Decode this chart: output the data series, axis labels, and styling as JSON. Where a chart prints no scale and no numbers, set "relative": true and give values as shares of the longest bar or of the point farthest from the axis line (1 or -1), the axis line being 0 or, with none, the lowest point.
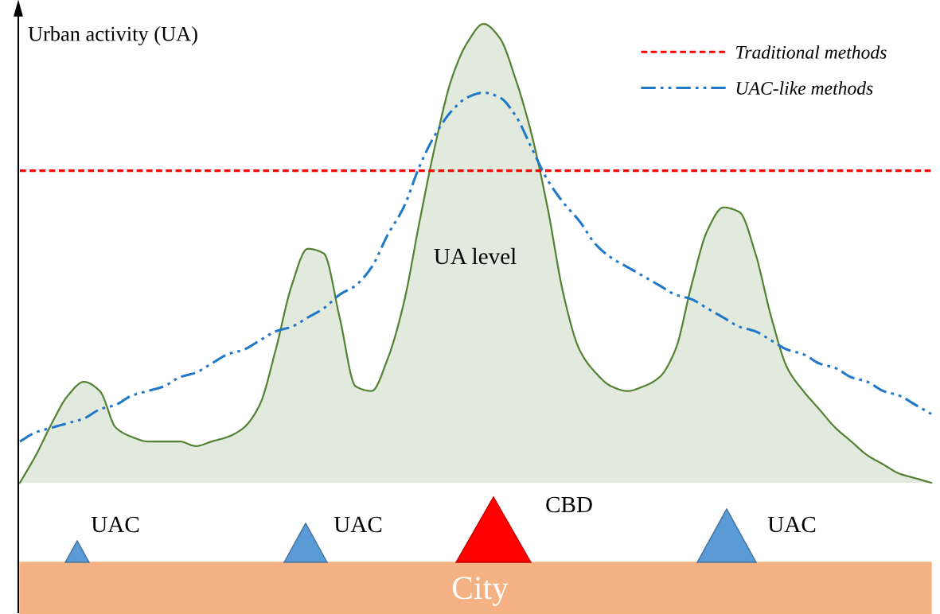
{
  "chart_data": {
    "type": "line",
    "relative": true,
    "ylabel": "Urban activity (UA)",
    "legend": "top right",
    "categories": [
      null,
      null,
      null,
      null,
      null,
      null,
      null,
      null,
      null,
      null,
      null,
      null,
      null,
      null,
      null,
      null,
      null,
      null,
      null,
      null,
      null,
      null,
      null,
      null,
      null,
      null,
      null,
      null,
      null,
      null,
      null,
      null,
      null,
      null,
      null,
      null,
      null,
      null,
      null,
      null,
      null,
      null,
      null,
      null,
      null,
      null,
      null,
      null,
      null,
      null,
      null,
      null,
      null,
      null,
      null,
      null,
      null,
      null
    ],
    "series": [
      {
        "type": "area",
        "color": "#548235",
        "values": [
          0,
          0.06,
          0.13,
          0.19,
          0.22,
          0.2,
          0.12,
          0.1,
          0.09,
          0.09,
          0.09,
          0.08,
          0.09,
          0.1,
          0.12,
          0.17,
          0.29,
          0.43,
          0.51,
          0.5,
          0.36,
          0.21,
          0.2,
          0.27,
          0.39,
          0.57,
          0.74,
          0.88,
          0.96,
          1.0,
          0.97,
          0.88,
          0.76,
          0.6,
          0.41,
          0.29,
          0.24,
          0.21,
          0.2,
          0.21,
          0.23,
          0.29,
          0.43,
          0.55,
          0.6,
          0.59,
          0.5,
          0.36,
          0.25,
          0.2,
          0.16,
          0.12,
          0.09,
          0.06,
          0.04,
          0.02,
          0.01,
          0
        ]
      },
      {
        "name": "Traditional methods",
        "color": "#ff0000",
        "line_style": "dashed",
        "values": [
          0.68,
          0.68,
          0.68,
          0.68,
          0.68,
          0.68,
          0.68,
          0.68,
          0.68,
          0.68,
          0.68,
          0.68,
          0.68,
          0.68,
          0.68,
          0.68,
          0.68,
          0.68,
          0.68,
          0.68,
          0.68,
          0.68,
          0.68,
          0.68,
          0.68,
          0.68,
          0.68,
          0.68,
          0.68,
          0.68,
          0.68,
          0.68,
          0.68,
          0.68,
          0.68,
          0.68,
          0.68,
          0.68,
          0.68,
          0.68,
          0.68,
          0.68,
          0.68,
          0.68,
          0.68,
          0.68,
          0.68,
          0.68,
          0.68,
          0.68,
          0.68,
          0.68,
          0.68,
          0.68,
          0.68,
          0.68,
          0.68,
          0.68
        ]
      },
      {
        "name": "UAC-like methods",
        "color": "#1f78c8",
        "line_style": "dashdot",
        "values": [
          0.09,
          0.11,
          0.12,
          0.13,
          0.14,
          0.16,
          0.17,
          0.19,
          0.2,
          0.21,
          0.23,
          0.24,
          0.26,
          0.28,
          0.29,
          0.31,
          0.33,
          0.34,
          0.36,
          0.38,
          0.41,
          0.43,
          0.47,
          0.54,
          0.6,
          0.69,
          0.76,
          0.81,
          0.84,
          0.85,
          0.84,
          0.8,
          0.73,
          0.66,
          0.61,
          0.57,
          0.52,
          0.49,
          0.47,
          0.45,
          0.43,
          0.41,
          0.4,
          0.38,
          0.36,
          0.34,
          0.33,
          0.31,
          0.29,
          0.28,
          0.26,
          0.25,
          0.23,
          0.22,
          0.2,
          0.19,
          0.17,
          0.15
        ]
      }
    ],
    "annotations": [
      "UA level",
      "UAC",
      "UAC",
      "CBD",
      "UAC",
      "City"
    ]
  }
}
